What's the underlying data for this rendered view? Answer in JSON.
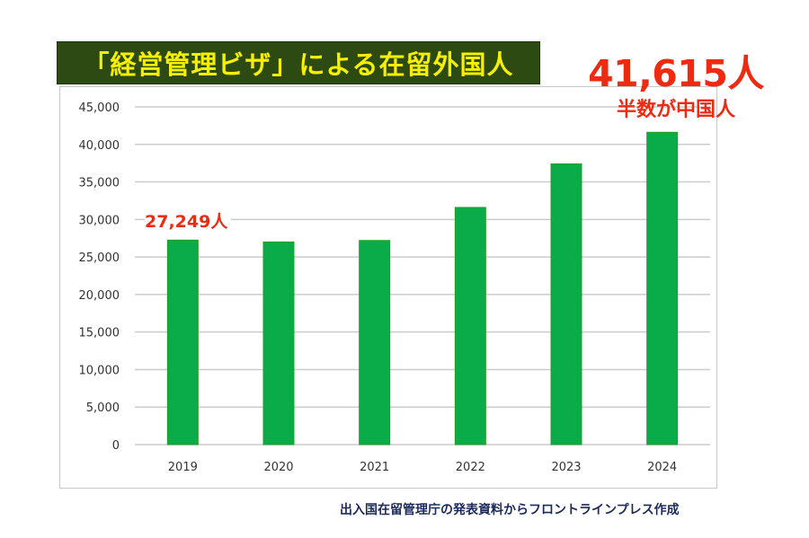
{
  "header": {
    "title": "「経営管理ビザ」による在留外国人"
  },
  "callouts": {
    "latest_count": "41,615人",
    "latest_note": "半数が中国人",
    "first_count": "27,249人"
  },
  "source": "出入国在留管理庁の発表資料からフロントラインプレス作成",
  "colors": {
    "bar": "#0aac4a",
    "bar_edge": "#2a9a2a",
    "title_bg": "#2c4a12",
    "title_text": "#f6f000",
    "callout": "#ee2a10",
    "grid": "#cccccc"
  },
  "chart_data": {
    "type": "bar",
    "title": "「経営管理ビザ」による在留外国人",
    "xlabel": "",
    "ylabel": "",
    "categories": [
      "2019",
      "2020",
      "2021",
      "2022",
      "2023",
      "2024"
    ],
    "values": [
      27249,
      27000,
      27200,
      31600,
      37400,
      41615
    ],
    "ylim": [
      0,
      45000
    ],
    "yticks": [
      0,
      5000,
      10000,
      15000,
      20000,
      25000,
      30000,
      35000,
      40000,
      45000
    ],
    "ytick_labels": [
      "0",
      "5,000",
      "10,000",
      "15,000",
      "20,000",
      "25,000",
      "30,000",
      "35,000",
      "40,000",
      "45,000"
    ],
    "grid": true,
    "legend": "none",
    "annotations": [
      "27,249人",
      "41,615人",
      "半数が中国人"
    ]
  }
}
